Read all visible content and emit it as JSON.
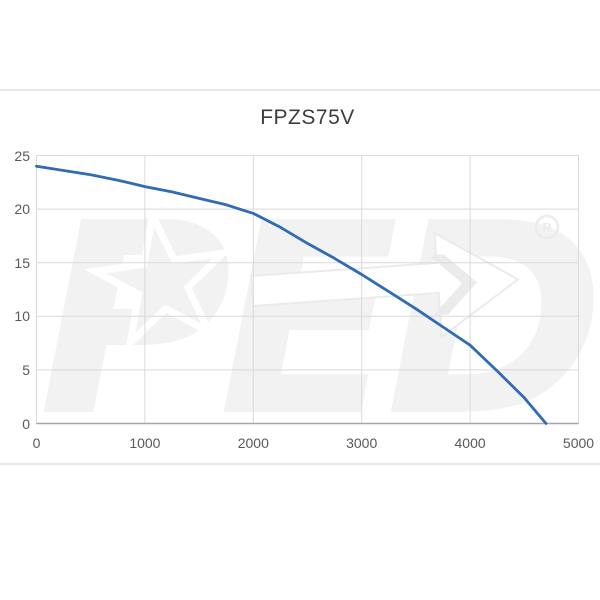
{
  "page": {
    "background": "#ffffff",
    "divider_color": "#e7e7e7"
  },
  "chart_data": {
    "type": "line",
    "title": "FPZS75V",
    "xlabel": "",
    "ylabel": "",
    "xlim": [
      0,
      5000
    ],
    "ylim": [
      0,
      25
    ],
    "x_ticks": [
      "0",
      "1000",
      "2000",
      "3000",
      "4000",
      "5000"
    ],
    "y_ticks": [
      "0",
      "5",
      "10",
      "15",
      "20",
      "25"
    ],
    "grid": true,
    "legend": false,
    "grid_color": "#d9d9d9",
    "axis_color": "#a6a6a6",
    "tick_label_color": "#595959",
    "series": [
      {
        "name": "FPZS75V",
        "color": "#2f6cb3",
        "points": [
          [
            0,
            24.0
          ],
          [
            250,
            23.6
          ],
          [
            500,
            23.2
          ],
          [
            750,
            22.7
          ],
          [
            1000,
            22.1
          ],
          [
            1250,
            21.6
          ],
          [
            1500,
            21.0
          ],
          [
            1750,
            20.4
          ],
          [
            2000,
            19.6
          ],
          [
            2250,
            18.3
          ],
          [
            2500,
            16.8
          ],
          [
            2750,
            15.4
          ],
          [
            3000,
            13.9
          ],
          [
            3250,
            12.3
          ],
          [
            3500,
            10.7
          ],
          [
            3750,
            9.0
          ],
          [
            4000,
            7.3
          ],
          [
            4250,
            4.9
          ],
          [
            4500,
            2.4
          ],
          [
            4700,
            0.0
          ]
        ]
      }
    ]
  },
  "watermark": {
    "text": "PED",
    "mark": "R",
    "fill": "#f2f2f2",
    "outline": "#ebebeb"
  }
}
